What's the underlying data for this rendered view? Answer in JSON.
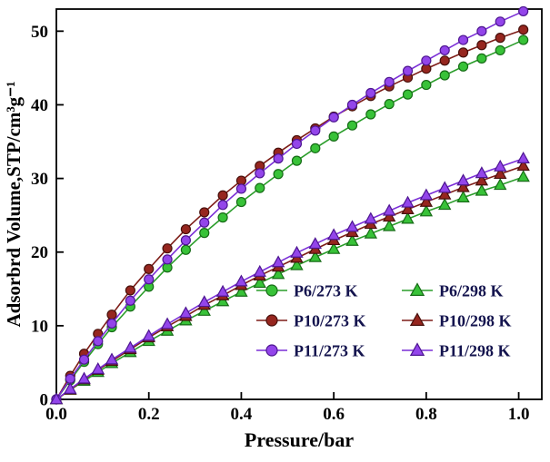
{
  "chart_data": {
    "type": "line",
    "title": "",
    "xlabel": "Pressure/bar",
    "ylabel": "Adsorbrd Volume,STP/cm³g⁻¹",
    "xlim": [
      0,
      1.05
    ],
    "ylim": [
      0,
      53
    ],
    "xticks": [
      0,
      0.2,
      0.4,
      0.6,
      0.8,
      1.0
    ],
    "xtick_labels": [
      "0.0",
      "0.2",
      "0.4",
      "0.6",
      "0.8",
      "1.0"
    ],
    "yticks": [
      0,
      10,
      20,
      30,
      40,
      50
    ],
    "ytick_labels": [
      "0",
      "10",
      "20",
      "30",
      "40",
      "50"
    ],
    "grid": false,
    "legend_position": "inside-lower-right",
    "legend_columns": 2,
    "x": [
      0,
      0.03,
      0.06,
      0.09,
      0.12,
      0.16,
      0.2,
      0.24,
      0.28,
      0.32,
      0.36,
      0.4,
      0.44,
      0.48,
      0.52,
      0.56,
      0.6,
      0.64,
      0.68,
      0.72,
      0.76,
      0.8,
      0.84,
      0.88,
      0.92,
      0.96,
      1.01
    ],
    "series": [
      {
        "name": "P6/273 K",
        "marker": "circle",
        "fill": "#38c238",
        "edge": "#166b16",
        "line": "#2a9d2a",
        "values": [
          0,
          2.6,
          5.1,
          7.5,
          9.8,
          12.6,
          15.3,
          17.9,
          20.3,
          22.6,
          24.7,
          26.8,
          28.7,
          30.6,
          32.4,
          34.1,
          35.7,
          37.2,
          38.7,
          40.1,
          41.4,
          42.7,
          44.0,
          45.2,
          46.3,
          47.4,
          48.8
        ]
      },
      {
        "name": "P6/298 K",
        "marker": "triangle",
        "fill": "#38c238",
        "edge": "#166b16",
        "line": "#2a9d2a",
        "values": [
          0,
          1.3,
          2.5,
          3.7,
          4.9,
          6.4,
          7.9,
          9.3,
          10.7,
          12.0,
          13.3,
          14.6,
          15.8,
          17.0,
          18.2,
          19.3,
          20.4,
          21.5,
          22.5,
          23.5,
          24.5,
          25.5,
          26.4,
          27.4,
          28.3,
          29.1,
          30.2
        ]
      },
      {
        "name": "P10/273 K",
        "marker": "circle",
        "fill": "#96261f",
        "edge": "#47100b",
        "line": "#7e1d18",
        "values": [
          0,
          3.2,
          6.2,
          8.9,
          11.5,
          14.8,
          17.7,
          20.5,
          23.1,
          25.4,
          27.7,
          29.7,
          31.7,
          33.5,
          35.2,
          36.8,
          38.4,
          39.8,
          41.2,
          42.5,
          43.7,
          44.9,
          46.0,
          47.1,
          48.1,
          49.1,
          50.2
        ]
      },
      {
        "name": "P10/298 K",
        "marker": "triangle",
        "fill": "#96261f",
        "edge": "#47100b",
        "line": "#7e1d18",
        "values": [
          0,
          1.3,
          2.7,
          4.0,
          5.2,
          6.8,
          8.4,
          9.9,
          11.3,
          12.8,
          14.1,
          15.5,
          16.8,
          18.0,
          19.2,
          20.4,
          21.6,
          22.7,
          23.8,
          24.8,
          25.8,
          26.8,
          27.8,
          28.8,
          29.7,
          30.6,
          31.7
        ]
      },
      {
        "name": "P11/273 K",
        "marker": "circle",
        "fill": "#9345ea",
        "edge": "#4d1691",
        "line": "#7a2ed6",
        "values": [
          0,
          2.8,
          5.4,
          7.9,
          10.3,
          13.4,
          16.3,
          19.0,
          21.6,
          24.0,
          26.4,
          28.6,
          30.7,
          32.7,
          34.7,
          36.5,
          38.3,
          40.0,
          41.6,
          43.1,
          44.6,
          46.0,
          47.4,
          48.8,
          50.0,
          51.3,
          52.7
        ]
      },
      {
        "name": "P11/298 K",
        "marker": "triangle",
        "fill": "#9345ea",
        "edge": "#4d1691",
        "line": "#7a2ed6",
        "values": [
          0,
          1.4,
          2.8,
          4.1,
          5.4,
          7.0,
          8.6,
          10.2,
          11.7,
          13.2,
          14.6,
          16.0,
          17.3,
          18.6,
          19.9,
          21.1,
          22.3,
          23.4,
          24.5,
          25.6,
          26.7,
          27.7,
          28.7,
          29.7,
          30.7,
          31.6,
          32.7
        ]
      }
    ],
    "colors": {
      "axis_text": "#000000",
      "legend_text": "#14144e",
      "frame": "#000000",
      "background": "#ffffff"
    }
  }
}
